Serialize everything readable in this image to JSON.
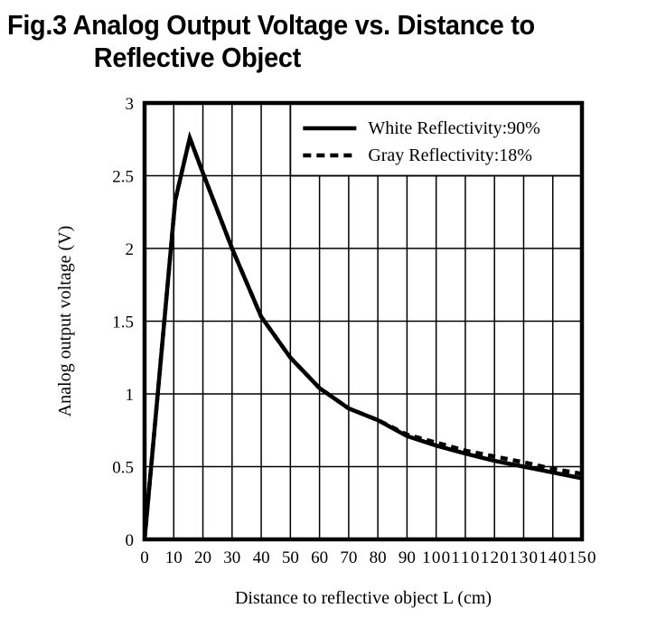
{
  "chart_data": {
    "type": "line",
    "title_line1": "Fig.3 Analog Output Voltage vs. Distance to",
    "title_line2": "Reflective Object",
    "xlabel": "Distance to reflective object L (cm)",
    "ylabel": "Analog output voltage (V)",
    "xlim": [
      0,
      150
    ],
    "ylim": [
      0,
      3
    ],
    "xticks": [
      0,
      10,
      20,
      30,
      40,
      50,
      60,
      70,
      80,
      90,
      100,
      110,
      120,
      130,
      140,
      150
    ],
    "yticks": [
      0,
      0.5,
      1,
      1.5,
      2,
      2.5,
      3
    ],
    "ytick_labels": [
      "0",
      "0.5",
      "1",
      "1.5",
      "2",
      "2.5",
      "3"
    ],
    "grid": true,
    "legend_position": "top-right",
    "series": [
      {
        "name": "White Reflectivity:90%",
        "style": "solid",
        "color": "#000000",
        "x": [
          0,
          10.5,
          15.5,
          20,
          30,
          40,
          50,
          60,
          70,
          80,
          90,
          100,
          110,
          120,
          130,
          140,
          150
        ],
        "y": [
          0,
          2.33,
          2.76,
          2.52,
          2.0,
          1.53,
          1.25,
          1.04,
          0.9,
          0.82,
          0.71,
          0.645,
          0.59,
          0.54,
          0.5,
          0.46,
          0.42
        ]
      },
      {
        "name": "Gray Reflectivity:18%",
        "style": "dashed",
        "color": "#000000",
        "x": [
          0,
          10.5,
          15.5,
          20,
          30,
          40,
          50,
          60,
          70,
          80,
          90,
          100,
          110,
          120,
          130,
          140,
          150
        ],
        "y": [
          0,
          2.33,
          2.76,
          2.52,
          2.0,
          1.53,
          1.25,
          1.04,
          0.9,
          0.82,
          0.72,
          0.665,
          0.61,
          0.57,
          0.53,
          0.485,
          0.45
        ]
      }
    ]
  }
}
